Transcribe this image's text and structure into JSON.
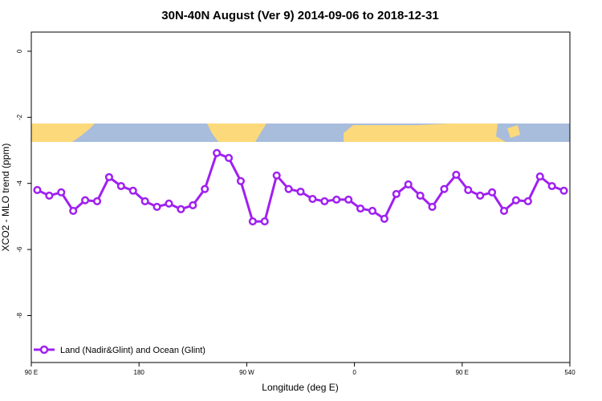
{
  "chart_data": {
    "type": "line",
    "title": "30N-40N August (Ver 9)   2014-09-06 to 2018-12-31",
    "x_label": "Longitude (deg E)",
    "y_label": "XCO2 - MLO trend (ppm)",
    "xlim": [
      90,
      540
    ],
    "ylim": [
      -9.42,
      0.58
    ],
    "xticks": [
      {
        "value": 90,
        "label": "90 E"
      },
      180,
      {
        "value": 270,
        "label": "90 W"
      },
      {
        "value": 360,
        "label": "0"
      },
      {
        "value": 450,
        "label": "90 E"
      },
      540
    ],
    "yticks": [
      0,
      -2,
      -4,
      -6,
      -8
    ],
    "legend": "bottom-left",
    "x": [
      95,
      105,
      115,
      125,
      135,
      145,
      155,
      165,
      175,
      185,
      195,
      205,
      215,
      225,
      235,
      245,
      255,
      265,
      275,
      285,
      295,
      305,
      315,
      325,
      335,
      345,
      355,
      365,
      375,
      385,
      395,
      405,
      415,
      425,
      435,
      445,
      455,
      465,
      475,
      485,
      495,
      505,
      515,
      525,
      535
    ],
    "series": [
      {
        "name": "Land (Nadir&Glint) and Ocean (Glint)",
        "color": "#a020f0",
        "values": [
          -4.2,
          -4.37,
          -4.27,
          -4.83,
          -4.51,
          -4.54,
          -3.81,
          -4.08,
          -4.22,
          -4.54,
          -4.71,
          -4.61,
          -4.78,
          -4.66,
          -4.17,
          -3.08,
          -3.23,
          -3.93,
          -5.15,
          -5.15,
          -3.76,
          -4.17,
          -4.25,
          -4.47,
          -4.54,
          -4.49,
          -4.49,
          -4.76,
          -4.83,
          -5.07,
          -4.32,
          -4.03,
          -4.37,
          -4.71,
          -4.17,
          -3.74,
          -4.2,
          -4.37,
          -4.27,
          -4.83,
          -4.51,
          -4.54,
          -3.79,
          -4.08,
          -4.22
        ]
      }
    ]
  }
}
